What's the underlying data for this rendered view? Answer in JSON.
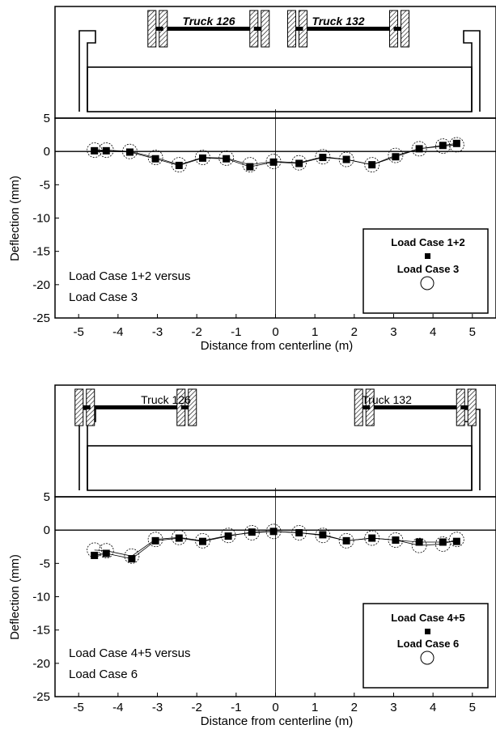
{
  "chart_data": [
    {
      "type": "line",
      "xlabel": "Distance from centerline (m)",
      "ylabel": "Deflection (mm)",
      "xlim": [
        -5.6,
        5.6
      ],
      "ylim": [
        -25,
        5
      ],
      "xticks": [
        -5,
        -4,
        -3,
        -2,
        -1,
        0,
        1,
        2,
        3,
        4,
        5
      ],
      "yticks": [
        5,
        0,
        -5,
        -10,
        -15,
        -20,
        -25
      ],
      "trucks": [
        "Truck 126",
        "Truck 132"
      ],
      "note": [
        "Load Case 1+2 versus",
        "Load Case 3"
      ],
      "legend": [
        "Load Case 1+2",
        "Load Case 3"
      ],
      "series": [
        {
          "name": "Load Case 1+2",
          "marker": "square",
          "x": [
            -4.6,
            -4.3,
            -3.7,
            -3.05,
            -2.45,
            -1.85,
            -1.25,
            -0.65,
            -0.05,
            0.6,
            1.2,
            1.8,
            2.45,
            3.05,
            3.65,
            4.25,
            4.6
          ],
          "y": [
            0.1,
            0.1,
            -0.1,
            -1.1,
            -2.1,
            -1.0,
            -1.1,
            -2.3,
            -1.6,
            -1.8,
            -0.9,
            -1.2,
            -2.0,
            -0.8,
            0.4,
            0.9,
            1.2
          ]
        },
        {
          "name": "Load Case 3",
          "marker": "circle",
          "x": [
            -4.6,
            -4.3,
            -3.7,
            -3.05,
            -2.45,
            -1.85,
            -1.25,
            -0.65,
            -0.05,
            0.6,
            1.2,
            1.8,
            2.45,
            3.05,
            3.65,
            4.25,
            4.6
          ],
          "y": [
            0.2,
            0.2,
            0.0,
            -0.9,
            -2.0,
            -0.9,
            -1.0,
            -2.0,
            -1.5,
            -1.7,
            -0.8,
            -1.2,
            -2.0,
            -0.6,
            0.4,
            0.8,
            1.0
          ]
        }
      ]
    },
    {
      "type": "line",
      "xlabel": "Distance from centerline (m)",
      "ylabel": "Deflection (mm)",
      "xlim": [
        -5.6,
        5.6
      ],
      "ylim": [
        -25,
        5
      ],
      "xticks": [
        -5,
        -4,
        -3,
        -2,
        -1,
        0,
        1,
        2,
        3,
        4,
        5
      ],
      "yticks": [
        5,
        0,
        -5,
        -10,
        -15,
        -20,
        -25
      ],
      "trucks": [
        "Truck 126",
        "Truck 132"
      ],
      "note": [
        "Load Case 4+5 versus",
        "Load Case 6"
      ],
      "legend": [
        "Load Case 4+5",
        "Load Case 6"
      ],
      "series": [
        {
          "name": "Load Case 4+5",
          "marker": "square",
          "x": [
            -4.6,
            -4.3,
            -3.65,
            -3.05,
            -2.45,
            -1.85,
            -1.2,
            -0.6,
            -0.05,
            0.6,
            1.2,
            1.8,
            2.45,
            3.05,
            3.65,
            4.25,
            4.6
          ],
          "y": [
            -3.8,
            -3.5,
            -4.3,
            -1.6,
            -1.2,
            -1.7,
            -0.9,
            -0.3,
            -0.2,
            -0.4,
            -0.7,
            -1.6,
            -1.2,
            -1.5,
            -1.8,
            -1.8,
            -1.7
          ]
        },
        {
          "name": "Load Case 6",
          "marker": "circle",
          "x": [
            -4.6,
            -4.3,
            -3.65,
            -3.05,
            -2.45,
            -1.85,
            -1.2,
            -0.6,
            -0.05,
            0.6,
            1.2,
            1.8,
            2.45,
            3.05,
            3.65,
            4.25,
            4.6
          ],
          "y": [
            -3.0,
            -3.1,
            -3.9,
            -1.4,
            -1.1,
            -1.6,
            -0.8,
            -0.4,
            -0.2,
            -0.4,
            -0.8,
            -1.6,
            -1.2,
            -1.5,
            -2.3,
            -2.1,
            -1.4
          ]
        }
      ]
    }
  ]
}
